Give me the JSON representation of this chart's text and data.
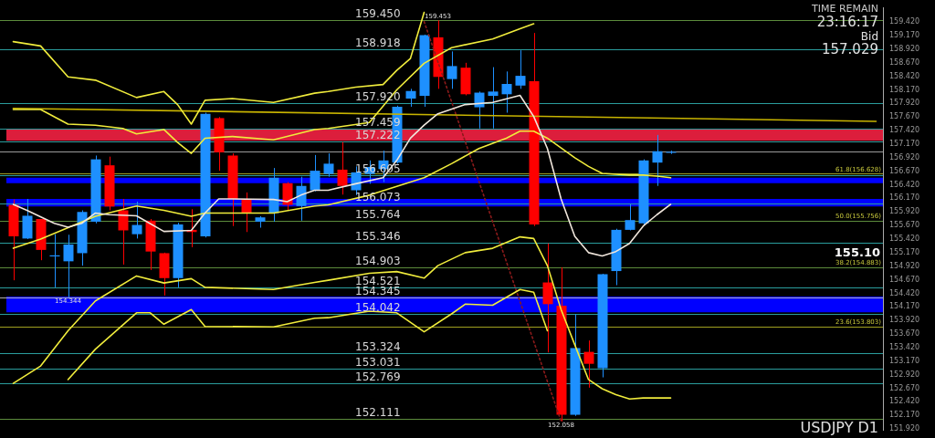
{
  "chart_data": {
    "type": "candlestick",
    "title": "USDJPY D1",
    "categories": [
      null,
      null,
      null,
      null,
      null,
      null,
      null,
      null,
      null,
      null,
      null,
      null,
      null,
      null,
      null,
      null,
      null,
      null,
      null,
      null,
      null,
      null,
      null,
      null,
      null,
      null,
      null,
      null,
      null,
      null,
      null,
      null,
      null,
      null,
      null,
      null,
      null,
      null,
      null,
      null,
      null,
      null,
      null,
      null,
      null,
      null,
      null,
      null,
      null,
      null,
      null,
      null,
      null,
      null,
      null,
      null,
      null,
      null,
      null,
      null,
      null,
      null,
      null,
      null
    ],
    "ohlc": [
      [
        156.05,
        156.15,
        154.66,
        155.47
      ],
      [
        155.43,
        156.16,
        155.42,
        155.85
      ],
      [
        155.79,
        155.79,
        155.03,
        155.22
      ],
      [
        155.1,
        155.51,
        154.53,
        155.12
      ],
      [
        155.01,
        155.5,
        154.344,
        155.32
      ],
      [
        155.16,
        155.95,
        154.93,
        155.92
      ],
      [
        155.74,
        156.96,
        155.71,
        156.89
      ],
      [
        156.78,
        156.94,
        155.95,
        156.02
      ],
      [
        155.95,
        156.16,
        154.95,
        155.58
      ],
      [
        155.51,
        156.11,
        155.43,
        155.68
      ],
      [
        155.76,
        155.79,
        154.85,
        155.19
      ],
      [
        155.16,
        155.17,
        154.38,
        154.7
      ],
      [
        154.7,
        155.72,
        154.53,
        155.69
      ],
      [
        155.59,
        155.97,
        155.27,
        155.55
      ],
      [
        155.47,
        157.75,
        155.45,
        157.73
      ],
      [
        157.65,
        157.67,
        156.68,
        157.02
      ],
      [
        156.96,
        157.0,
        155.66,
        156.16
      ],
      [
        156.16,
        156.28,
        155.55,
        155.9
      ],
      [
        155.74,
        155.84,
        155.63,
        155.82
      ],
      [
        155.9,
        156.73,
        155.74,
        156.55
      ],
      [
        156.45,
        156.47,
        155.95,
        156.05
      ],
      [
        156.03,
        156.57,
        155.76,
        156.4
      ],
      [
        156.32,
        156.97,
        156.3,
        156.68
      ],
      [
        156.62,
        157.0,
        156.57,
        156.81
      ],
      [
        156.7,
        157.21,
        156.24,
        156.4
      ],
      [
        156.32,
        156.76,
        156.23,
        156.65
      ],
      [
        156.62,
        156.87,
        156.44,
        156.75
      ],
      [
        156.71,
        157.05,
        156.47,
        156.87
      ],
      [
        156.83,
        157.88,
        156.81,
        157.86
      ],
      [
        158.01,
        158.19,
        157.86,
        158.15
      ],
      [
        158.06,
        159.19,
        157.86,
        159.18
      ],
      [
        159.14,
        159.453,
        158.19,
        158.41
      ],
      [
        158.37,
        158.88,
        158.19,
        158.61
      ],
      [
        158.58,
        158.67,
        158.07,
        158.09
      ],
      [
        157.85,
        158.14,
        157.46,
        158.12
      ],
      [
        158.06,
        158.59,
        157.46,
        158.14
      ],
      [
        158.09,
        158.51,
        157.75,
        158.28
      ],
      [
        158.25,
        158.9,
        158.19,
        158.43
      ],
      [
        158.33,
        159.22,
        155.66,
        155.69
      ],
      [
        154.62,
        155.34,
        153.33,
        154.22
      ],
      [
        154.19,
        154.9,
        152.058,
        152.18
      ],
      [
        152.18,
        154.04,
        152.16,
        153.41
      ],
      [
        153.34,
        153.55,
        152.68,
        153.12
      ],
      [
        153.04,
        154.78,
        152.87,
        154.77
      ],
      [
        154.83,
        155.61,
        154.57,
        155.59
      ],
      [
        155.59,
        156.06,
        155.58,
        155.77
      ],
      [
        155.71,
        156.89,
        155.69,
        156.87
      ],
      [
        156.83,
        157.34,
        156.4,
        157.04
      ],
      [
        157.01,
        157.05,
        156.99,
        157.029
      ],
      null,
      null,
      null,
      null,
      null,
      null,
      null,
      null,
      null,
      null,
      null,
      null,
      null,
      null,
      null
    ],
    "colors": [
      "#ff0000",
      "#1e90ff",
      "#ff0000",
      "#1e90ff",
      "#1e90ff",
      "#1e90ff",
      "#1e90ff",
      "#ff0000",
      "#ff0000",
      "#1e90ff",
      "#ff0000",
      "#ff0000",
      "#1e90ff",
      "#ff0000",
      "#1e90ff",
      "#ff0000",
      "#ff0000",
      "#ff0000",
      "#1e90ff",
      "#1e90ff",
      "#ff0000",
      "#1e90ff",
      "#1e90ff",
      "#1e90ff",
      "#ff0000",
      "#1e90ff",
      "#1e90ff",
      "#1e90ff",
      "#1e90ff",
      "#1e90ff",
      "#1e90ff",
      "#ff0000",
      "#1e90ff",
      "#ff0000",
      "#1e90ff",
      "#1e90ff",
      "#1e90ff",
      "#1e90ff",
      "#ff0000",
      "#ff0000",
      "#ff0000",
      "#1e90ff",
      "#ff0000",
      "#1e90ff",
      "#1e90ff",
      "#1e90ff",
      "#1e90ff",
      "#1e90ff",
      "#1e90ff",
      null,
      null,
      null,
      null,
      null,
      null,
      null,
      null,
      null,
      null,
      null,
      null,
      null,
      null,
      null
    ],
    "series": [
      {
        "type": "line",
        "color": "#f0e6dc",
        "values": [
          156.06,
          155.95,
          null,
          155.71,
          155.64,
          155.71,
          155.9,
          155.87,
          null,
          155.85,
          null,
          155.56,
          null,
          155.58,
          155.9,
          156.16,
          156.16,
          null,
          null,
          156.15,
          156.11,
          156.23,
          156.32,
          156.32,
          null,
          156.44,
          null,
          156.55,
          156.87,
          157.28,
          157.52,
          157.73,
          null,
          157.9,
          null,
          157.94,
          null,
          158.07,
          157.68,
          157.09,
          156.16,
          155.47,
          155.17,
          155.11,
          155.19,
          155.34,
          155.66,
          155.87,
          156.06,
          null,
          null,
          null,
          null,
          null,
          null,
          null,
          null,
          null,
          null,
          null,
          null,
          null,
          null,
          null
        ]
      },
      {
        "type": "line",
        "color": "#f0ec3c",
        "values": [
          159.06,
          null,
          158.98,
          null,
          158.41,
          null,
          158.35,
          null,
          null,
          158.03,
          null,
          158.14,
          157.9,
          157.54,
          157.98,
          null,
          158.01,
          null,
          null,
          157.94,
          null,
          null,
          158.11,
          158.14,
          null,
          158.22,
          null,
          158.27,
          158.53,
          158.75,
          159.6,
          null,
          null,
          null,
          null,
          null,
          null,
          null,
          null,
          null,
          null,
          null,
          null,
          null,
          null,
          null,
          null,
          null,
          null,
          null,
          null,
          null,
          null,
          null,
          null,
          null,
          null,
          null,
          null,
          null,
          null,
          null,
          null,
          null
        ]
      },
      {
        "type": "line",
        "color": "#f0ec3c",
        "values": [
          157.81,
          null,
          157.81,
          null,
          157.54,
          null,
          157.52,
          null,
          157.46,
          157.36,
          null,
          157.44,
          157.2,
          157.0,
          157.28,
          null,
          157.31,
          null,
          null,
          157.25,
          null,
          null,
          157.44,
          157.46,
          null,
          null,
          157.57,
          null,
          158.17,
          null,
          158.66,
          null,
          158.95,
          null,
          null,
          159.11,
          null,
          159.3,
          159.39,
          null,
          null,
          null,
          null,
          null,
          null,
          null,
          null,
          null,
          null,
          null,
          null,
          null,
          null,
          null,
          null,
          null,
          null,
          null,
          null,
          null,
          null,
          null,
          null,
          null
        ]
      },
      {
        "type": "line",
        "color": "#f0ec3c",
        "values": [
          155.25,
          null,
          155.42,
          null,
          155.63,
          null,
          155.84,
          null,
          null,
          156.03,
          null,
          155.95,
          null,
          155.84,
          155.9,
          null,
          155.9,
          null,
          null,
          155.9,
          null,
          null,
          156.03,
          156.05,
          null,
          null,
          156.23,
          null,
          156.39,
          null,
          156.55,
          null,
          156.81,
          null,
          157.09,
          null,
          157.28,
          157.41,
          157.41,
          157.28,
          null,
          156.92,
          156.76,
          156.63,
          null,
          156.6,
          156.6,
          156.58,
          156.55,
          null,
          null,
          null,
          null,
          null,
          null,
          null,
          null,
          null,
          null,
          null,
          null,
          null,
          null,
          null
        ]
      },
      {
        "type": "line",
        "color": "#f0ec3c",
        "values": [
          152.76,
          null,
          153.08,
          null,
          153.73,
          null,
          154.28,
          null,
          null,
          154.74,
          null,
          154.61,
          null,
          154.69,
          154.53,
          null,
          null,
          null,
          null,
          154.49,
          null,
          null,
          154.62,
          154.66,
          null,
          null,
          154.79,
          null,
          154.82,
          null,
          154.7,
          154.93,
          null,
          155.17,
          null,
          155.25,
          null,
          155.46,
          155.43,
          154.93,
          154.12,
          153.47,
          152.83,
          152.66,
          152.55,
          152.47,
          152.49,
          152.49,
          152.49,
          null,
          null,
          null,
          null,
          null,
          null,
          null,
          null,
          null,
          null,
          null,
          null,
          null,
          null,
          null
        ]
      },
      {
        "type": "line",
        "color": "#f0ec3c",
        "values": [
          null,
          null,
          null,
          null,
          152.83,
          null,
          153.39,
          null,
          null,
          154.06,
          154.06,
          153.85,
          null,
          154.12,
          153.81,
          null,
          null,
          null,
          null,
          153.8,
          null,
          null,
          153.96,
          153.97,
          null,
          null,
          154.09,
          null,
          154.06,
          null,
          153.71,
          null,
          154.04,
          154.22,
          null,
          154.2,
          null,
          154.49,
          154.44,
          153.73,
          null,
          null,
          null,
          null,
          null,
          null,
          null,
          null,
          null,
          null,
          null,
          null,
          null,
          null,
          null,
          null,
          null,
          null,
          null,
          null,
          null,
          null,
          null,
          null
        ]
      },
      {
        "type": "line",
        "color": "#c8b400",
        "values": [
          157.83,
          null,
          null,
          null,
          null,
          null,
          null,
          null,
          null,
          null,
          null,
          null,
          null,
          null,
          null,
          null,
          null,
          null,
          null,
          null,
          null,
          null,
          null,
          null,
          null,
          null,
          null,
          null,
          null,
          null,
          null,
          null,
          null,
          null,
          null,
          null,
          null,
          null,
          null,
          null,
          null,
          null,
          null,
          null,
          null,
          null,
          null,
          null,
          null,
          null,
          null,
          null,
          null,
          null,
          null,
          null,
          null,
          null,
          null,
          null,
          null,
          null,
          null,
          157.59
        ]
      },
      {
        "type": "line",
        "color": "#8b1a1a",
        "line_style": "dotted",
        "values": [
          null,
          null,
          null,
          null,
          null,
          null,
          null,
          null,
          null,
          null,
          null,
          null,
          null,
          null,
          null,
          null,
          null,
          null,
          null,
          null,
          null,
          null,
          null,
          null,
          null,
          null,
          null,
          null,
          null,
          null,
          159.43,
          null,
          null,
          null,
          null,
          null,
          null,
          null,
          null,
          null,
          152.06,
          null,
          null,
          null,
          null,
          null,
          null,
          null,
          null,
          null,
          null,
          null,
          null,
          null,
          null,
          null,
          null,
          null,
          null,
          null,
          null,
          null,
          null,
          null
        ]
      }
    ],
    "ylim": [
      151.9,
      159.68
    ],
    "yticks": [
      {
        "value": 151.92,
        "label": "151.920"
      },
      {
        "value": 152.17,
        "label": "152.170"
      },
      {
        "value": 152.42,
        "label": "152.420"
      },
      {
        "value": 152.67,
        "label": "152.670"
      },
      {
        "value": 152.92,
        "label": "152.920"
      },
      {
        "value": 153.17,
        "label": "153.170"
      },
      {
        "value": 153.42,
        "label": "153.420"
      },
      {
        "value": 153.67,
        "label": "153.670"
      },
      {
        "value": 153.92,
        "label": "153.920"
      },
      {
        "value": 154.17,
        "label": "154.170"
      },
      {
        "value": 154.42,
        "label": "154.420"
      },
      {
        "value": 154.67,
        "label": "154.670"
      },
      {
        "value": 154.92,
        "label": "154.920"
      },
      {
        "value": 155.17,
        "label": "155.170"
      },
      {
        "value": 155.42,
        "label": "155.420"
      },
      {
        "value": 155.67,
        "label": "155.670"
      },
      {
        "value": 155.92,
        "label": "155.920"
      },
      {
        "value": 156.17,
        "label": "156.170"
      },
      {
        "value": 156.42,
        "label": "156.420"
      },
      {
        "value": 156.67,
        "label": "156.670"
      },
      {
        "value": 156.92,
        "label": "156.920"
      },
      {
        "value": 157.17,
        "label": "157.170"
      },
      {
        "value": 157.42,
        "label": "157.420"
      },
      {
        "value": 157.67,
        "label": "157.670"
      },
      {
        "value": 157.92,
        "label": "157.920"
      },
      {
        "value": 158.17,
        "label": "158.170"
      },
      {
        "value": 158.42,
        "label": "158.420"
      },
      {
        "value": 158.67,
        "label": "158.670"
      },
      {
        "value": 158.92,
        "label": "158.920"
      },
      {
        "value": 159.17,
        "label": "159.170"
      },
      {
        "value": 159.42,
        "label": "159.420"
      }
    ],
    "tick_labels": "y",
    "grid": false,
    "legend": false,
    "marker": "none",
    "bands": [
      {
        "axis": "y",
        "from": 157.232,
        "to": 157.457,
        "color": "#dc1e3c"
      },
      {
        "axis": "y",
        "from": 154.07,
        "to": 154.36,
        "color": "#0000ff"
      },
      {
        "axis": "y",
        "from": 156.45,
        "to": 156.55,
        "color": "#0000ff"
      },
      {
        "axis": "y",
        "from": 156.02,
        "to": 156.16,
        "color": "#0000ff"
      }
    ],
    "ref_lines": [
      {
        "axis": "y",
        "value": 159.45,
        "label": "159.450",
        "color": "#5c8c3c"
      },
      {
        "axis": "y",
        "value": 158.918,
        "label": "158.918",
        "color": "#2a9d9d"
      },
      {
        "axis": "y",
        "value": 157.92,
        "label": "157.920",
        "color": "#2a9d9d"
      },
      {
        "axis": "y",
        "value": 157.459,
        "label": "157.459",
        "color": "#2a9d9d"
      },
      {
        "axis": "y",
        "value": 157.222,
        "label": "157.222",
        "color": "#2a9d9d"
      },
      {
        "axis": "y",
        "value": 157.029,
        "color": "#9a9a9a"
      },
      {
        "axis": "y",
        "value": 156.605,
        "label": "156.605",
        "color": "#2a9d9d"
      },
      {
        "axis": "y",
        "value": 156.073,
        "label": "156.073",
        "color": "#2a9d9d"
      },
      {
        "axis": "y",
        "value": 155.764,
        "label": "155.764",
        "color": "#5c8c3c"
      },
      {
        "axis": "y",
        "value": 155.346,
        "label": "155.346",
        "color": "#2a9d9d"
      },
      {
        "axis": "y",
        "value": 154.903,
        "label": "154.903",
        "color": "#5c8c3c"
      },
      {
        "axis": "y",
        "value": 154.521,
        "label": "154.521",
        "color": "#2a9d9d"
      },
      {
        "axis": "y",
        "value": 154.345,
        "label": "154.345",
        "color": "#b0b0b0"
      },
      {
        "axis": "y",
        "value": 154.042,
        "label": "154.042",
        "color": "#2a9d9d"
      },
      {
        "axis": "y",
        "value": 153.324,
        "label": "153.324",
        "color": "#2a9d9d"
      },
      {
        "axis": "y",
        "value": 153.031,
        "label": "153.031",
        "color": "#2a9d9d"
      },
      {
        "axis": "y",
        "value": 152.769,
        "label": "152.769",
        "color": "#2a9d9d"
      },
      {
        "axis": "y",
        "value": 152.111,
        "label": "152.111",
        "color": "#5c8c3c"
      },
      {
        "axis": "y",
        "value": 156.628,
        "color": "#a0a020"
      },
      {
        "axis": "y",
        "value": 153.803,
        "color": "#a0a020"
      }
    ],
    "annotations": [
      "TIME REMAIN",
      "23:16:17",
      "Bid",
      "157.029",
      "155.10",
      {
        "text": "159.453",
        "y": 159.453
      },
      {
        "text": "154.344",
        "y": 154.344
      },
      {
        "text": "152.058",
        "y": 152.058
      },
      {
        "text": "61.8(156.628)",
        "y": 156.628
      },
      {
        "text": "50.0(155.756)",
        "y": 155.764
      },
      {
        "text": "38.2(154.883)",
        "y": 154.903
      },
      {
        "text": "23.6(153.803)",
        "y": 153.803
      }
    ]
  }
}
